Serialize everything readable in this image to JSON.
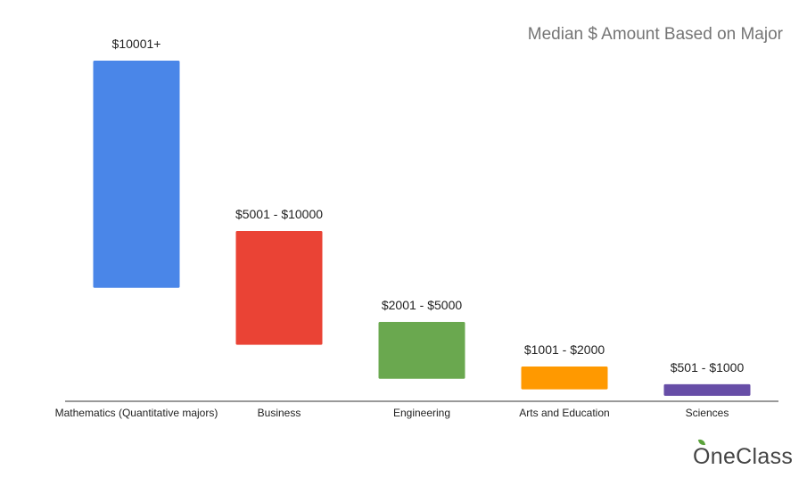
{
  "chart_data": {
    "type": "bar",
    "subtype": "floating",
    "title": "Median $ Amount Based on Major",
    "categories": [
      "Mathematics (Quantitative majors)",
      "Business",
      "Engineering",
      "Arts and Education",
      "Sciences"
    ],
    "ranges": [
      [
        10001,
        30000
      ],
      [
        5001,
        10000
      ],
      [
        2001,
        5000
      ],
      [
        1001,
        2000
      ],
      [
        501,
        1000
      ]
    ],
    "data_labels": [
      "$10001+",
      "$5001 - $10000",
      "$2001 - $5000",
      "$1001 - $2000",
      "$501 - $1000"
    ],
    "colors": [
      "#4a86e8",
      "#ea4335",
      "#6aa84f",
      "#ff9900",
      "#674ea7"
    ],
    "xlabel": "",
    "ylabel": "",
    "ylim": [
      0,
      30000
    ],
    "grid": false,
    "legend": "none"
  },
  "branding": {
    "logo_text": "OneClass"
  }
}
